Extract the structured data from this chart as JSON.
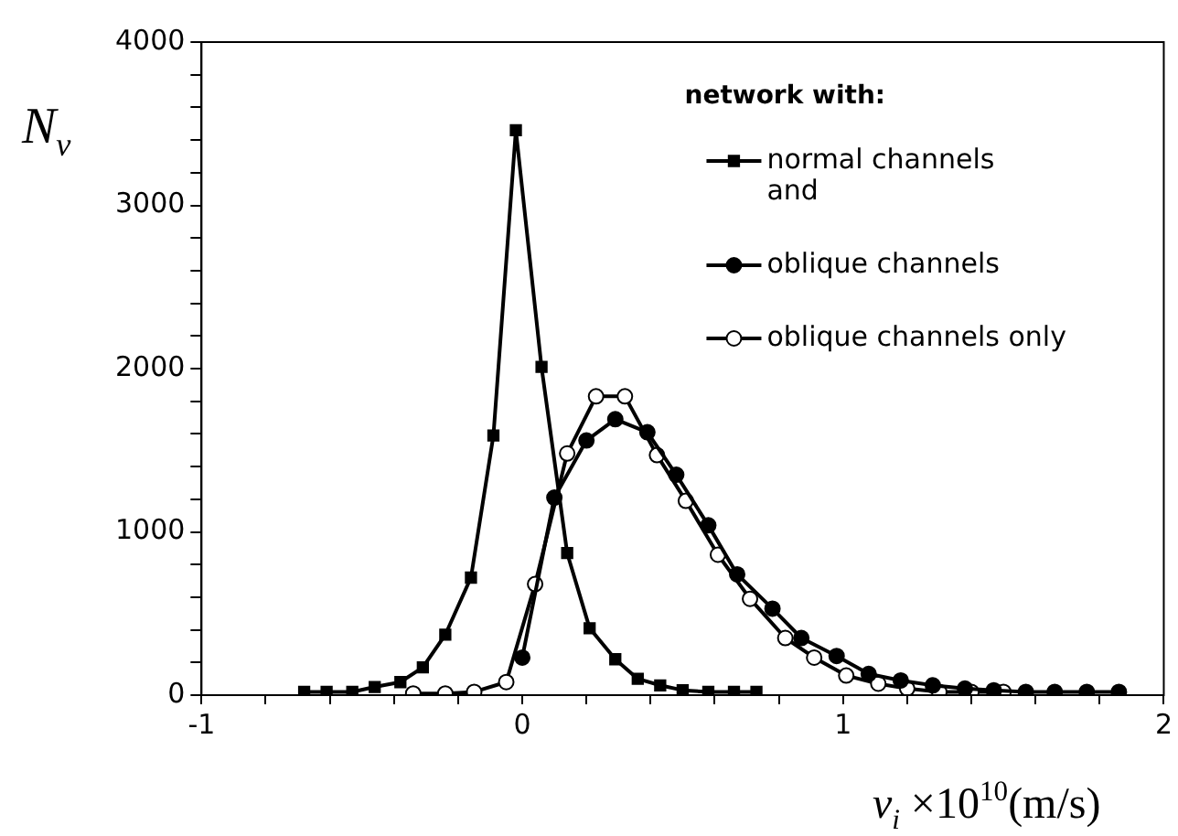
{
  "chart_data": {
    "type": "line",
    "xlabel": "v$_{i}$ ×10$^{10}$(m/s)",
    "ylabel": "N$_{v}$",
    "legend_title": "network with:",
    "legend": "top right",
    "grid": false,
    "line_style": "solid",
    "xlim": [
      -1,
      2
    ],
    "xticks": [
      -1,
      {
        "value": -0.8,
        "label": null
      },
      {
        "value": -0.6,
        "label": null
      },
      {
        "value": -0.4,
        "label": null
      },
      {
        "value": -0.2,
        "label": null
      },
      0,
      {
        "value": 0.2,
        "label": null
      },
      {
        "value": 0.4,
        "label": null
      },
      {
        "value": 0.6,
        "label": null
      },
      {
        "value": 0.8,
        "label": null
      },
      1,
      {
        "value": 1.2,
        "label": null
      },
      {
        "value": 1.4,
        "label": null
      },
      {
        "value": 1.6,
        "label": null
      },
      {
        "value": 1.8,
        "label": null
      },
      2
    ],
    "ylim": [
      0,
      4000
    ],
    "yticks": [
      0,
      {
        "value": 200,
        "label": null
      },
      {
        "value": 400,
        "label": null
      },
      {
        "value": 600,
        "label": null
      },
      {
        "value": 800,
        "label": null
      },
      1000,
      {
        "value": 1200,
        "label": null
      },
      {
        "value": 1400,
        "label": null
      },
      {
        "value": 1600,
        "label": null
      },
      {
        "value": 1800,
        "label": null
      },
      2000,
      {
        "value": 2200,
        "label": null
      },
      {
        "value": 2400,
        "label": null
      },
      {
        "value": 2600,
        "label": null
      },
      {
        "value": 2800,
        "label": null
      },
      3000,
      {
        "value": 3200,
        "label": null
      },
      {
        "value": 3400,
        "label": null
      },
      {
        "value": 3600,
        "label": null
      },
      {
        "value": 3800,
        "label": null
      },
      4000
    ],
    "series": [
      {
        "name": "normal channels\nand",
        "color": "#000000",
        "marker": "square",
        "x": [
          -0.68,
          -0.61,
          -0.53,
          -0.46,
          -0.38,
          -0.31,
          -0.24,
          -0.16,
          -0.09,
          -0.02,
          0.06,
          0.14,
          0.21,
          0.29,
          0.36,
          0.43,
          0.5,
          0.58,
          0.66,
          0.73
        ],
        "values": [
          20,
          20,
          20,
          50,
          80,
          170,
          370,
          720,
          1590,
          3460,
          2010,
          870,
          410,
          220,
          100,
          60,
          30,
          20,
          20,
          20
        ]
      },
      {
        "name": "oblique channels",
        "color": "#000000",
        "marker": "circle",
        "x": [
          0.0,
          0.1,
          0.2,
          0.29,
          0.39,
          0.48,
          0.58,
          0.67,
          0.78,
          0.87,
          0.98,
          1.08,
          1.18,
          1.28,
          1.38,
          1.47,
          1.57,
          1.66,
          1.76,
          1.86
        ],
        "values": [
          230,
          1210,
          1560,
          1690,
          1610,
          1350,
          1040,
          740,
          530,
          350,
          240,
          130,
          90,
          60,
          40,
          30,
          20,
          20,
          20,
          20
        ]
      },
      {
        "name": "oblique channels only",
        "color": "#ffffff",
        "marker": "circle",
        "x": [
          -0.34,
          -0.24,
          -0.15,
          -0.05,
          0.04,
          0.14,
          0.23,
          0.32,
          0.42,
          0.51,
          0.61,
          0.71,
          0.82,
          0.91,
          1.01,
          1.11,
          1.2,
          1.3,
          1.4,
          1.5
        ],
        "values": [
          10,
          10,
          20,
          80,
          680,
          1480,
          1830,
          1830,
          1470,
          1190,
          860,
          590,
          350,
          230,
          120,
          70,
          40,
          20,
          20,
          20
        ]
      }
    ]
  }
}
